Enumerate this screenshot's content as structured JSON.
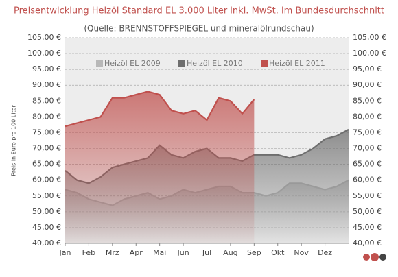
{
  "chart_data": {
    "type": "area",
    "title": "Preisentwicklung Heizöl Standard EL 3.000 Liter inkl. MwSt. im Bundesdurchschnitt",
    "subtitle": "(Quelle: BRENNSTOFFSPIEGEL und mineralölrundschau)",
    "y_label": "Preis in Euro pro 100 Liter",
    "x": [
      1,
      1.5,
      2,
      2.5,
      3,
      3.5,
      4,
      4.5,
      5,
      5.5,
      6,
      6.5,
      7,
      7.5,
      8,
      8.5,
      9,
      9.5,
      10,
      10.5,
      11,
      11.5,
      12,
      12.5,
      13
    ],
    "xlim": [
      1,
      13
    ],
    "xticks": [
      {
        "value": 1,
        "label": "Jan"
      },
      {
        "value": 2,
        "label": "Feb"
      },
      {
        "value": 3,
        "label": "Mrz"
      },
      {
        "value": 4,
        "label": "Apr"
      },
      {
        "value": 5,
        "label": "Mai"
      },
      {
        "value": 6,
        "label": "Jun"
      },
      {
        "value": 7,
        "label": "Jul"
      },
      {
        "value": 8,
        "label": "Aug"
      },
      {
        "value": 9,
        "label": "Sep"
      },
      {
        "value": 10,
        "label": "Okt"
      },
      {
        "value": 11,
        "label": "Nov"
      },
      {
        "value": 12,
        "label": "Dez"
      }
    ],
    "ylim": [
      40,
      105
    ],
    "yticks": [
      {
        "value": 40,
        "label": "40,00 €"
      },
      {
        "value": 45,
        "label": "45,00 €"
      },
      {
        "value": 50,
        "label": "50,00 €"
      },
      {
        "value": 55,
        "label": "55,00 €"
      },
      {
        "value": 60,
        "label": "60,00 €"
      },
      {
        "value": 65,
        "label": "65,00 €"
      },
      {
        "value": 70,
        "label": "70,00 €"
      },
      {
        "value": 75,
        "label": "75,00 €"
      },
      {
        "value": 80,
        "label": "80,00 €"
      },
      {
        "value": 85,
        "label": "85,00 €"
      },
      {
        "value": 90,
        "label": "90,00 €"
      },
      {
        "value": 95,
        "label": "95,00 €"
      },
      {
        "value": 100,
        "label": "100,00 €"
      },
      {
        "value": 105,
        "label": "105,00 €"
      }
    ],
    "grid": true,
    "series": [
      {
        "name": "Heizöl EL 2009",
        "color": "#b8b8b8",
        "values": [
          57,
          56,
          54,
          53,
          52,
          54,
          55,
          56,
          54,
          55,
          57,
          56,
          57,
          58,
          58,
          56,
          56,
          55,
          56,
          59,
          59,
          58,
          57,
          58,
          60
        ]
      },
      {
        "name": "Heizöl EL 2010",
        "color": "#6e6e6e",
        "values": [
          63,
          60,
          59,
          61,
          64,
          65,
          66,
          67,
          71,
          68,
          67,
          69,
          70,
          67,
          67,
          66,
          68,
          68,
          68,
          67,
          68,
          70,
          73,
          74,
          76
        ]
      },
      {
        "name": "Heizöl EL 2011",
        "color": "#c0504d",
        "values": [
          77,
          78,
          79,
          80,
          86,
          86,
          87,
          88,
          87,
          82,
          81,
          82,
          79,
          86,
          85,
          81,
          85.5,
          null,
          null,
          null,
          null,
          null,
          null,
          null,
          null
        ]
      }
    ]
  }
}
